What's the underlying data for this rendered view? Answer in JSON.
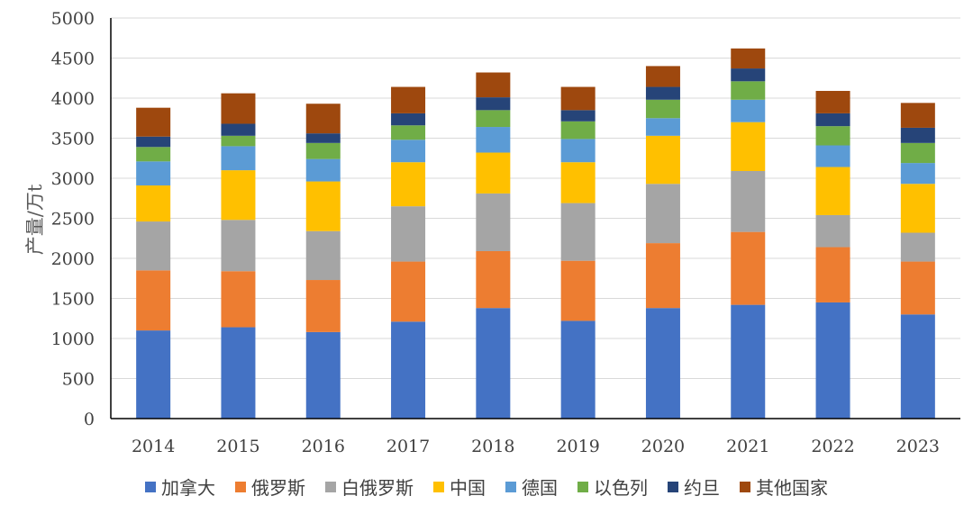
{
  "chart_data": {
    "type": "stacked-bar",
    "title": "",
    "xlabel": "",
    "ylabel": "产量/万t",
    "ylim": [
      0,
      5000
    ],
    "yticks": [
      0,
      500,
      1000,
      1500,
      2000,
      2500,
      3000,
      3500,
      4000,
      4500,
      5000
    ],
    "categories": [
      "2014",
      "2015",
      "2016",
      "2017",
      "2018",
      "2019",
      "2020",
      "2021",
      "2022",
      "2023"
    ],
    "series": [
      {
        "name": "加拿大",
        "color": "#4472C4",
        "values": [
          1100,
          1140,
          1080,
          1210,
          1380,
          1220,
          1380,
          1420,
          1450,
          1300
        ]
      },
      {
        "name": "俄罗斯",
        "color": "#ED7D31",
        "values": [
          750,
          700,
          650,
          750,
          710,
          750,
          810,
          910,
          690,
          660
        ]
      },
      {
        "name": "白俄罗斯",
        "color": "#A5A5A5",
        "values": [
          610,
          640,
          610,
          690,
          720,
          720,
          740,
          760,
          400,
          360
        ]
      },
      {
        "name": "中国",
        "color": "#FFC000",
        "values": [
          450,
          620,
          620,
          550,
          510,
          510,
          600,
          610,
          600,
          610
        ]
      },
      {
        "name": "德国",
        "color": "#5B9BD5",
        "values": [
          300,
          300,
          280,
          280,
          320,
          290,
          220,
          280,
          270,
          260
        ]
      },
      {
        "name": "以色列",
        "color": "#70AD47",
        "values": [
          180,
          130,
          200,
          180,
          210,
          220,
          230,
          230,
          240,
          250
        ]
      },
      {
        "name": "约旦",
        "color": "#264478",
        "values": [
          130,
          150,
          120,
          150,
          160,
          140,
          160,
          160,
          160,
          190
        ]
      },
      {
        "name": "其他国家",
        "color": "#9E480E",
        "values": [
          360,
          380,
          370,
          330,
          310,
          290,
          260,
          250,
          280,
          310
        ]
      }
    ]
  }
}
